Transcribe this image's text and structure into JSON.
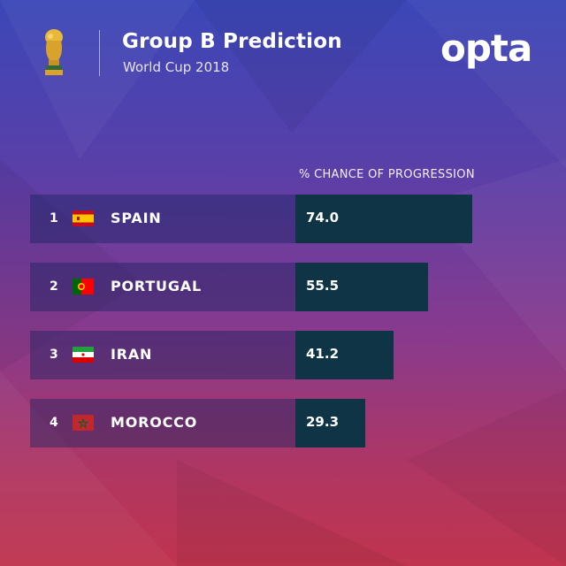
{
  "header": {
    "title": "Group B Prediction",
    "subtitle": "World Cup 2018",
    "brand": "opta"
  },
  "chart_data": {
    "type": "bar",
    "orientation": "horizontal",
    "column_header": "% CHANCE OF PROGRESSION",
    "categories": [
      "SPAIN",
      "PORTUGAL",
      "IRAN",
      "MOROCCO"
    ],
    "ranks": [
      "1",
      "2",
      "3",
      "4"
    ],
    "values": [
      74.0,
      55.5,
      41.2,
      29.3
    ],
    "value_labels": [
      "74.0",
      "55.5",
      "41.2",
      "29.3"
    ],
    "flags": [
      "spain-flag-icon",
      "portugal-flag-icon",
      "iran-flag-icon",
      "morocco-flag-icon"
    ]
  },
  "colors": {
    "bar": "#0e3445",
    "label_box": "#14225c",
    "background_top": "#3b47b8",
    "background_bottom": "#c0344e"
  }
}
